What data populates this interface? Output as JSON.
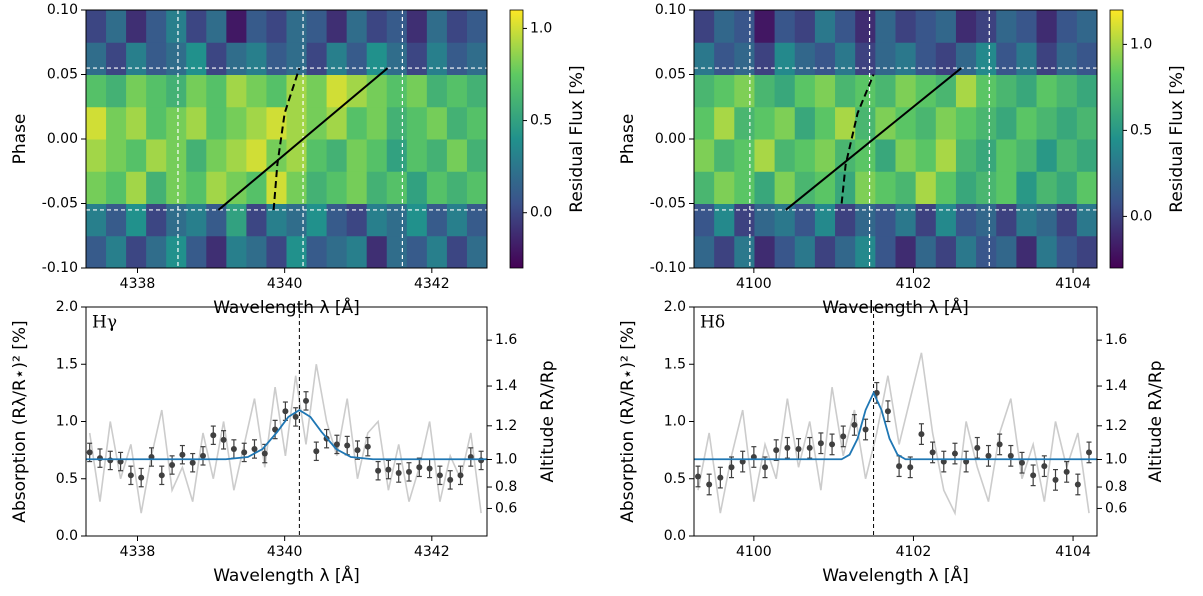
{
  "chart_data": [
    {
      "type": "heatmap",
      "xlabel": "Wavelength λ [Å]",
      "ylabel": "Phase",
      "colorbar_label": "Residual Flux [%]",
      "colormap": "viridis",
      "xlim": [
        4337.3,
        4342.75
      ],
      "ylim": [
        -0.1,
        0.1
      ],
      "xticks": [
        4338,
        4340,
        4342
      ],
      "yticks": [
        {
          "value": -0.1,
          "label": "-0.10"
        },
        {
          "value": -0.05,
          "label": "-0.05"
        },
        {
          "value": 0,
          "label": "0.00"
        },
        {
          "value": 0.05,
          "label": "0.05"
        },
        {
          "value": 0.1,
          "label": "0.10"
        }
      ],
      "zlim": [
        -0.3,
        1.1
      ],
      "cticks": [
        {
          "value": 0,
          "label": "0.0"
        },
        0.5,
        {
          "value": 1,
          "label": "1.0"
        }
      ],
      "z": [
        [
          0.1,
          0.3,
          0.0,
          0.2,
          0.4,
          0.1,
          -0.1,
          0.3,
          0.2,
          0.0,
          0.4,
          0.1,
          0.2,
          0.3,
          -0.1,
          0.2,
          0.1,
          0.3,
          0.0,
          0.2
        ],
        [
          0.3,
          0.1,
          0.4,
          0.0,
          0.2,
          0.3,
          0.1,
          0.5,
          0.0,
          0.3,
          0.2,
          0.4,
          0.1,
          0.0,
          0.3,
          0.2,
          0.4,
          0.1,
          0.3,
          0.1
        ],
        [
          0.8,
          0.7,
          0.9,
          0.6,
          0.8,
          0.7,
          0.9,
          0.8,
          0.7,
          1.0,
          0.8,
          0.6,
          0.7,
          0.8,
          0.6,
          0.7,
          0.5,
          0.7,
          0.6,
          0.7
        ],
        [
          0.9,
          0.8,
          0.7,
          0.9,
          0.8,
          0.6,
          0.8,
          0.9,
          1.0,
          0.8,
          0.9,
          0.7,
          0.6,
          0.8,
          0.7,
          0.5,
          0.7,
          0.6,
          0.8,
          0.6
        ],
        [
          1.0,
          0.8,
          0.9,
          0.7,
          0.8,
          0.9,
          0.7,
          0.8,
          0.9,
          1.0,
          0.9,
          0.8,
          0.9,
          0.7,
          0.8,
          0.6,
          0.7,
          0.8,
          0.6,
          0.7
        ],
        [
          0.7,
          0.6,
          0.8,
          0.7,
          0.6,
          0.8,
          0.7,
          0.9,
          0.8,
          0.7,
          0.9,
          0.8,
          1.0,
          0.9,
          0.8,
          0.7,
          0.8,
          0.6,
          0.7,
          0.6
        ],
        [
          0.2,
          0.0,
          0.3,
          0.1,
          0.2,
          0.4,
          0.0,
          0.2,
          0.3,
          0.1,
          0.2,
          0.0,
          0.3,
          0.1,
          0.4,
          0.2,
          0.0,
          0.3,
          0.1,
          0.2
        ],
        [
          0.0,
          0.2,
          -0.1,
          0.1,
          0.3,
          0.0,
          0.2,
          -0.2,
          0.1,
          0.0,
          0.2,
          0.1,
          -0.1,
          0.2,
          0.0,
          0.1,
          -0.1,
          0.2,
          0.0,
          0.1
        ]
      ],
      "hlines": [
        -0.055,
        0.055
      ],
      "vlines": [
        4338.55,
        4340.25,
        4341.6
      ],
      "lines": [
        {
          "style": "solid",
          "color": "#000000",
          "x": [
            4339.1,
            4341.4
          ],
          "y": [
            -0.055,
            0.055
          ]
        },
        {
          "style": "dashed",
          "color": "#000000",
          "x": [
            4339.85,
            4339.9,
            4340.0,
            4340.2
          ],
          "y": [
            -0.055,
            -0.02,
            0.02,
            0.055
          ]
        }
      ]
    },
    {
      "type": "heatmap",
      "xlabel": "Wavelength λ [Å]",
      "ylabel": "Phase",
      "colorbar_label": "Residual Flux [%]",
      "colormap": "viridis",
      "xlim": [
        4099.25,
        4104.3
      ],
      "ylim": [
        -0.1,
        0.1
      ],
      "xticks": [
        4100,
        4102,
        4104
      ],
      "yticks": [
        {
          "value": -0.1,
          "label": "-0.10"
        },
        {
          "value": -0.05,
          "label": "-0.05"
        },
        {
          "value": 0,
          "label": "0.00"
        },
        {
          "value": 0.05,
          "label": "0.05"
        },
        {
          "value": 0.1,
          "label": "0.10"
        }
      ],
      "zlim": [
        -0.3,
        1.2
      ],
      "cticks": [
        {
          "value": 0,
          "label": "0.0"
        },
        0.5,
        {
          "value": 1,
          "label": "1.0"
        }
      ],
      "z": [
        [
          0.2,
          0.0,
          0.3,
          -0.1,
          0.1,
          0.3,
          0.0,
          0.2,
          0.4,
          0.1,
          -0.1,
          0.2,
          0.0,
          0.3,
          0.1,
          0.2,
          -0.1,
          0.3,
          0.1,
          0.0
        ],
        [
          0.1,
          0.4,
          0.0,
          0.2,
          0.3,
          0.1,
          0.4,
          0.0,
          0.2,
          0.1,
          0.3,
          0.0,
          0.4,
          0.1,
          0.2,
          0.0,
          0.3,
          0.2,
          0.0,
          0.3
        ],
        [
          0.7,
          0.9,
          0.8,
          0.6,
          0.9,
          0.7,
          0.8,
          0.6,
          0.9,
          0.8,
          0.7,
          1.0,
          0.8,
          0.6,
          0.7,
          0.8,
          0.5,
          0.7,
          0.6,
          0.8
        ],
        [
          0.9,
          0.7,
          0.8,
          1.0,
          0.7,
          0.8,
          0.9,
          0.7,
          0.8,
          0.6,
          0.9,
          0.8,
          1.0,
          0.7,
          0.6,
          0.8,
          0.7,
          0.5,
          0.7,
          0.6
        ],
        [
          0.8,
          1.0,
          0.7,
          0.8,
          0.9,
          0.6,
          0.8,
          1.0,
          0.7,
          0.9,
          0.8,
          0.7,
          0.9,
          0.8,
          0.7,
          0.6,
          0.8,
          0.7,
          0.6,
          0.7
        ],
        [
          0.7,
          0.8,
          0.9,
          0.7,
          0.6,
          0.8,
          0.9,
          0.7,
          0.8,
          0.7,
          0.9,
          0.8,
          0.7,
          1.0,
          0.8,
          0.7,
          0.6,
          0.8,
          0.7,
          0.6
        ],
        [
          0.3,
          0.1,
          0.2,
          0.0,
          0.4,
          0.2,
          0.1,
          0.3,
          0.0,
          0.2,
          0.3,
          0.1,
          0.0,
          0.2,
          0.4,
          0.1,
          0.3,
          0.0,
          0.2,
          0.1
        ],
        [
          0.0,
          0.2,
          0.1,
          -0.2,
          0.1,
          0.0,
          0.3,
          0.1,
          -0.1,
          0.2,
          0.0,
          0.1,
          0.2,
          -0.1,
          0.0,
          0.2,
          0.1,
          -0.1,
          0.1,
          0.2
        ]
      ],
      "hlines": [
        -0.055,
        0.055
      ],
      "vlines": [
        4099.95,
        4101.45,
        4102.95
      ],
      "lines": [
        {
          "style": "solid",
          "color": "#000000",
          "x": [
            4100.4,
            4102.6
          ],
          "y": [
            -0.055,
            0.055
          ]
        },
        {
          "style": "dashed",
          "color": "#000000",
          "x": [
            4101.1,
            4101.15,
            4101.3,
            4101.5
          ],
          "y": [
            -0.05,
            -0.02,
            0.02,
            0.05
          ]
        }
      ]
    },
    {
      "type": "errorbar",
      "label": "Hγ",
      "xlabel": "Wavelength λ [Å]",
      "ylabel": "Absorption (Rλ/R⋆)² [%]",
      "y2label": "Altitude Rλ/Rp",
      "xlim": [
        4337.3,
        4342.75
      ],
      "ylim": [
        0,
        2
      ],
      "y2lim": [
        0,
        1.73
      ],
      "y2scale": "quadratic",
      "xticks": [
        4338,
        4340,
        4342
      ],
      "yticks": [
        {
          "value": 0,
          "label": "0.0"
        },
        0.5,
        {
          "value": 1,
          "label": "1.0"
        },
        1.5,
        {
          "value": 2,
          "label": "2.0"
        }
      ],
      "y2ticks": [
        0.6,
        0.8,
        {
          "value": 1,
          "label": "1.0"
        },
        1.2,
        1.4,
        1.6
      ],
      "center": 4340.2,
      "x": [
        4337.35,
        4337.49,
        4337.63,
        4337.77,
        4337.91,
        4338.05,
        4338.19,
        4338.33,
        4338.47,
        4338.61,
        4338.75,
        4338.89,
        4339.03,
        4339.17,
        4339.31,
        4339.45,
        4339.59,
        4339.73,
        4339.87,
        4340.01,
        4340.15,
        4340.29,
        4340.43,
        4340.57,
        4340.71,
        4340.85,
        4340.99,
        4341.13,
        4341.27,
        4341.41,
        4341.55,
        4341.69,
        4341.83,
        4341.97,
        4342.11,
        4342.25,
        4342.39,
        4342.53,
        4342.67
      ],
      "series": [
        {
          "style": "line",
          "color": "#cccccc",
          "values": [
            0.9,
            0.3,
            1.0,
            0.5,
            0.8,
            0.2,
            0.7,
            1.1,
            0.4,
            0.6,
            0.3,
            0.9,
            0.5,
            1.0,
            0.4,
            0.8,
            1.2,
            0.6,
            1.3,
            0.7,
            1.4,
            0.8,
            1.5,
            1.0,
            0.7,
            1.2,
            0.5,
            0.9,
            1.0,
            0.4,
            0.8,
            0.3,
            0.6,
            1.0,
            0.3,
            0.7,
            0.5,
            0.9,
            0.2
          ]
        },
        {
          "style": "errorbar",
          "color": "#404040",
          "values": [
            0.73,
            0.68,
            0.66,
            0.65,
            0.53,
            0.51,
            0.69,
            0.53,
            0.62,
            0.71,
            0.64,
            0.7,
            0.88,
            0.84,
            0.76,
            0.73,
            0.76,
            0.72,
            0.93,
            1.09,
            1.04,
            1.18,
            0.74,
            0.85,
            0.8,
            0.79,
            0.75,
            0.78,
            0.57,
            0.58,
            0.55,
            0.56,
            0.6,
            0.59,
            0.53,
            0.49,
            0.53,
            0.69,
            0.66
          ],
          "errors": [
            0.08,
            0.08,
            0.08,
            0.08,
            0.08,
            0.08,
            0.08,
            0.08,
            0.08,
            0.08,
            0.08,
            0.08,
            0.08,
            0.08,
            0.08,
            0.08,
            0.08,
            0.08,
            0.08,
            0.08,
            0.08,
            0.08,
            0.08,
            0.08,
            0.08,
            0.08,
            0.08,
            0.08,
            0.08,
            0.08,
            0.08,
            0.08,
            0.08,
            0.08,
            0.08,
            0.08,
            0.08,
            0.08,
            0.08
          ]
        },
        {
          "style": "model",
          "color": "#1f77b4",
          "x": [
            4337.3,
            4339.2,
            4339.5,
            4339.7,
            4339.9,
            4340.05,
            4340.2,
            4340.35,
            4340.5,
            4340.7,
            4340.9,
            4341.2,
            4342.75
          ],
          "values": [
            0.67,
            0.67,
            0.69,
            0.76,
            0.91,
            1.04,
            1.1,
            1.04,
            0.91,
            0.76,
            0.69,
            0.67,
            0.67
          ]
        }
      ]
    },
    {
      "type": "errorbar",
      "label": "Hδ",
      "xlabel": "Wavelength λ [Å]",
      "ylabel": "Absorption (Rλ/R⋆)² [%]",
      "y2label": "Altitude Rλ/Rp",
      "xlim": [
        4099.25,
        4104.3
      ],
      "ylim": [
        0,
        2
      ],
      "y2lim": [
        0,
        1.73
      ],
      "y2scale": "quadratic",
      "xticks": [
        4100,
        4102,
        4104
      ],
      "yticks": [
        {
          "value": 0,
          "label": "0.0"
        },
        0.5,
        {
          "value": 1,
          "label": "1.0"
        },
        1.5,
        {
          "value": 2,
          "label": "2.0"
        }
      ],
      "y2ticks": [
        0.6,
        0.8,
        {
          "value": 1,
          "label": "1.0"
        },
        1.2,
        1.4,
        1.6
      ],
      "center": 4101.5,
      "x": [
        4099.3,
        4099.44,
        4099.58,
        4099.72,
        4099.86,
        4100.0,
        4100.14,
        4100.28,
        4100.42,
        4100.56,
        4100.7,
        4100.84,
        4100.98,
        4101.12,
        4101.26,
        4101.4,
        4101.54,
        4101.68,
        4101.82,
        4101.96,
        4102.1,
        4102.24,
        4102.38,
        4102.52,
        4102.66,
        4102.8,
        4102.94,
        4103.08,
        4103.22,
        4103.36,
        4103.5,
        4103.64,
        4103.78,
        4103.92,
        4104.06,
        4104.2
      ],
      "series": [
        {
          "style": "line",
          "color": "#cccccc",
          "values": [
            0.4,
            0.9,
            0.2,
            0.7,
            1.1,
            0.3,
            0.8,
            0.5,
            1.2,
            0.6,
            1.0,
            0.4,
            1.3,
            0.7,
            1.1,
            0.5,
            0.9,
            1.4,
            0.8,
            1.2,
            1.6,
            0.9,
            0.4,
            0.2,
            1.0,
            0.6,
            0.3,
            0.9,
            1.2,
            0.5,
            0.8,
            0.3,
            1.0,
            0.6,
            0.9,
            0.2
          ]
        },
        {
          "style": "errorbar",
          "color": "#404040",
          "values": [
            0.52,
            0.45,
            0.51,
            0.6,
            0.65,
            0.69,
            0.6,
            0.75,
            0.77,
            0.76,
            0.77,
            0.81,
            0.8,
            0.87,
            0.97,
            0.93,
            1.25,
            1.09,
            0.61,
            0.6,
            0.89,
            0.73,
            0.65,
            0.72,
            0.65,
            0.77,
            0.7,
            0.8,
            0.7,
            0.64,
            0.53,
            0.61,
            0.49,
            0.56,
            0.45,
            0.73
          ],
          "errors": [
            0.09,
            0.09,
            0.09,
            0.09,
            0.09,
            0.09,
            0.09,
            0.09,
            0.09,
            0.09,
            0.09,
            0.09,
            0.09,
            0.09,
            0.09,
            0.09,
            0.09,
            0.09,
            0.09,
            0.09,
            0.09,
            0.09,
            0.09,
            0.09,
            0.09,
            0.09,
            0.09,
            0.09,
            0.09,
            0.09,
            0.09,
            0.09,
            0.09,
            0.09,
            0.09,
            0.09
          ]
        },
        {
          "style": "model",
          "color": "#1f77b4",
          "x": [
            4099.25,
            4101.1,
            4101.2,
            4101.3,
            4101.4,
            4101.5,
            4101.6,
            4101.7,
            4101.8,
            4101.9,
            4104.3
          ],
          "values": [
            0.67,
            0.67,
            0.71,
            0.85,
            1.1,
            1.25,
            1.1,
            0.85,
            0.71,
            0.67,
            0.67
          ]
        }
      ]
    }
  ]
}
